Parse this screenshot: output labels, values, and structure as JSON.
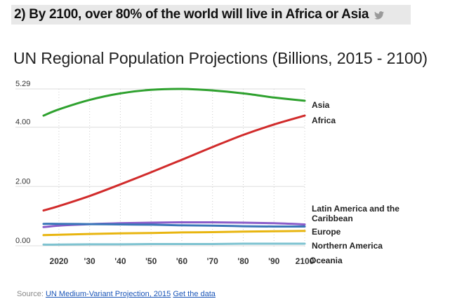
{
  "headline": "2) By 2100, over 80% of the world will live in Africa or Asia",
  "icons": {
    "share": "twitter-icon"
  },
  "chart_data": {
    "type": "line",
    "title": "UN Regional Population Projections (Billions, 2015 - 2100)",
    "ylim": [
      0,
      5.29
    ],
    "xlim": [
      2015,
      2100
    ],
    "y_ticks": [
      0,
      2,
      4,
      5.29
    ],
    "y_tick_labels": [
      "0.00",
      "2.00",
      "4.00",
      "5.29"
    ],
    "x_ticks": [
      2020,
      2030,
      2040,
      2050,
      2060,
      2070,
      2080,
      2090,
      2100
    ],
    "x_tick_labels": [
      "2020",
      "'30",
      "'40",
      "'50",
      "'60",
      "'70",
      "'80",
      "'90",
      "2100"
    ],
    "grid": "vertical-dotted and horizontal",
    "x": [
      2015,
      2020,
      2030,
      2040,
      2050,
      2060,
      2070,
      2080,
      2090,
      2100
    ],
    "series": [
      {
        "name": "Asia",
        "color": "#2ea12e",
        "values": [
          4.39,
          4.6,
          4.92,
          5.14,
          5.26,
          5.29,
          5.24,
          5.14,
          5.0,
          4.89
        ]
      },
      {
        "name": "Africa",
        "color": "#d12b2b",
        "values": [
          1.19,
          1.34,
          1.68,
          2.07,
          2.48,
          2.9,
          3.33,
          3.74,
          4.09,
          4.39
        ]
      },
      {
        "name": "Latin America and the Caribbean",
        "color": "#8a5cc9",
        "values": [
          0.63,
          0.68,
          0.73,
          0.76,
          0.78,
          0.79,
          0.79,
          0.78,
          0.76,
          0.72
        ]
      },
      {
        "name": "Europe",
        "color": "#3a76b8",
        "values": [
          0.74,
          0.74,
          0.73,
          0.72,
          0.71,
          0.69,
          0.68,
          0.66,
          0.65,
          0.65
        ]
      },
      {
        "name": "Northern America",
        "color": "#e8b510",
        "values": [
          0.36,
          0.37,
          0.4,
          0.42,
          0.43,
          0.45,
          0.46,
          0.48,
          0.49,
          0.5
        ]
      },
      {
        "name": "Oceania",
        "color": "#7dc2d0",
        "values": [
          0.04,
          0.04,
          0.05,
          0.05,
          0.06,
          0.06,
          0.06,
          0.07,
          0.07,
          0.07
        ]
      }
    ]
  },
  "source": {
    "prefix": "Source: ",
    "link_text": "UN Medium-Variant Projection, 2015",
    "data_link_text": "Get the data"
  }
}
